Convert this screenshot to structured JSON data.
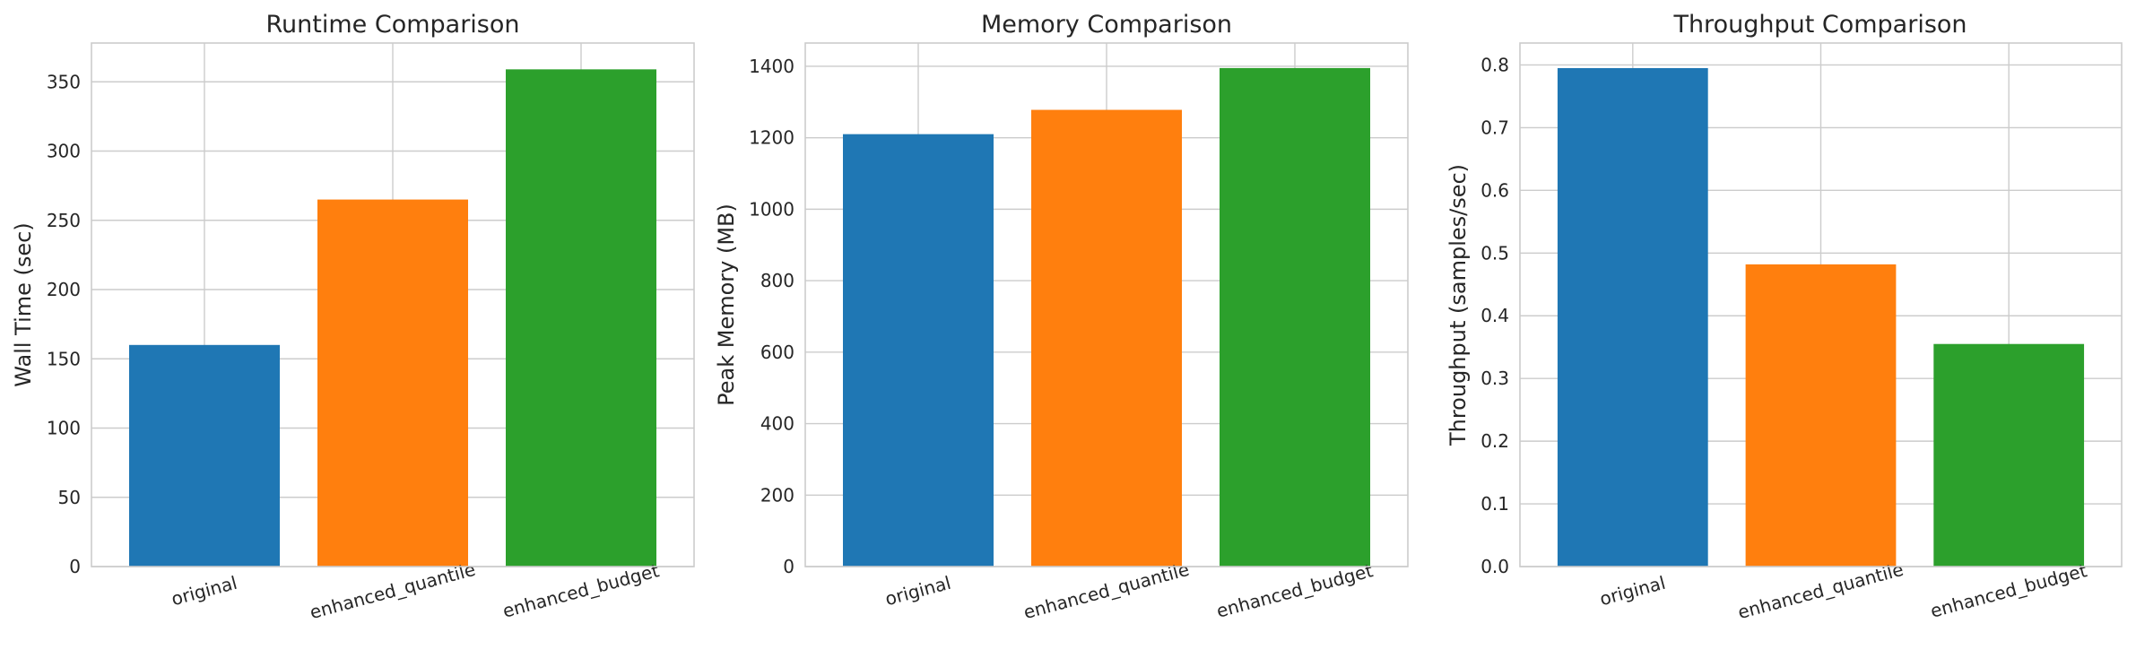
{
  "chart_data": [
    {
      "type": "bar",
      "title": "Runtime Comparison",
      "xlabel": "",
      "ylabel": "Wall Time (sec)",
      "categories": [
        "original",
        "enhanced_quantile",
        "enhanced_budget"
      ],
      "values": [
        160,
        265,
        359
      ],
      "colors": [
        "#1f77b4",
        "#ff7f0e",
        "#2ca02c"
      ],
      "ylim": [
        0,
        378
      ],
      "yticks": [
        0,
        50,
        100,
        150,
        200,
        250,
        300,
        350
      ],
      "ytick_labels": [
        "0",
        "50",
        "100",
        "150",
        "200",
        "250",
        "300",
        "350"
      ],
      "grid": true
    },
    {
      "type": "bar",
      "title": "Memory Comparison",
      "xlabel": "",
      "ylabel": "Peak Memory (MB)",
      "categories": [
        "original",
        "enhanced_quantile",
        "enhanced_budget"
      ],
      "values": [
        1210,
        1278,
        1395
      ],
      "colors": [
        "#1f77b4",
        "#ff7f0e",
        "#2ca02c"
      ],
      "ylim": [
        0,
        1465
      ],
      "yticks": [
        0,
        200,
        400,
        600,
        800,
        1000,
        1200,
        1400
      ],
      "ytick_labels": [
        "0",
        "200",
        "400",
        "600",
        "800",
        "1000",
        "1200",
        "1400"
      ],
      "grid": true
    },
    {
      "type": "bar",
      "title": "Throughput Comparison",
      "xlabel": "",
      "ylabel": "Throughput (samples/sec)",
      "categories": [
        "original",
        "enhanced_quantile",
        "enhanced_budget"
      ],
      "values": [
        0.795,
        0.482,
        0.355
      ],
      "colors": [
        "#1f77b4",
        "#ff7f0e",
        "#2ca02c"
      ],
      "ylim": [
        0,
        0.835
      ],
      "yticks": [
        0.0,
        0.1,
        0.2,
        0.3,
        0.4,
        0.5,
        0.6,
        0.7,
        0.8
      ],
      "ytick_labels": [
        "0.0",
        "0.1",
        "0.2",
        "0.3",
        "0.4",
        "0.5",
        "0.6",
        "0.7",
        "0.8"
      ],
      "grid": true
    }
  ]
}
